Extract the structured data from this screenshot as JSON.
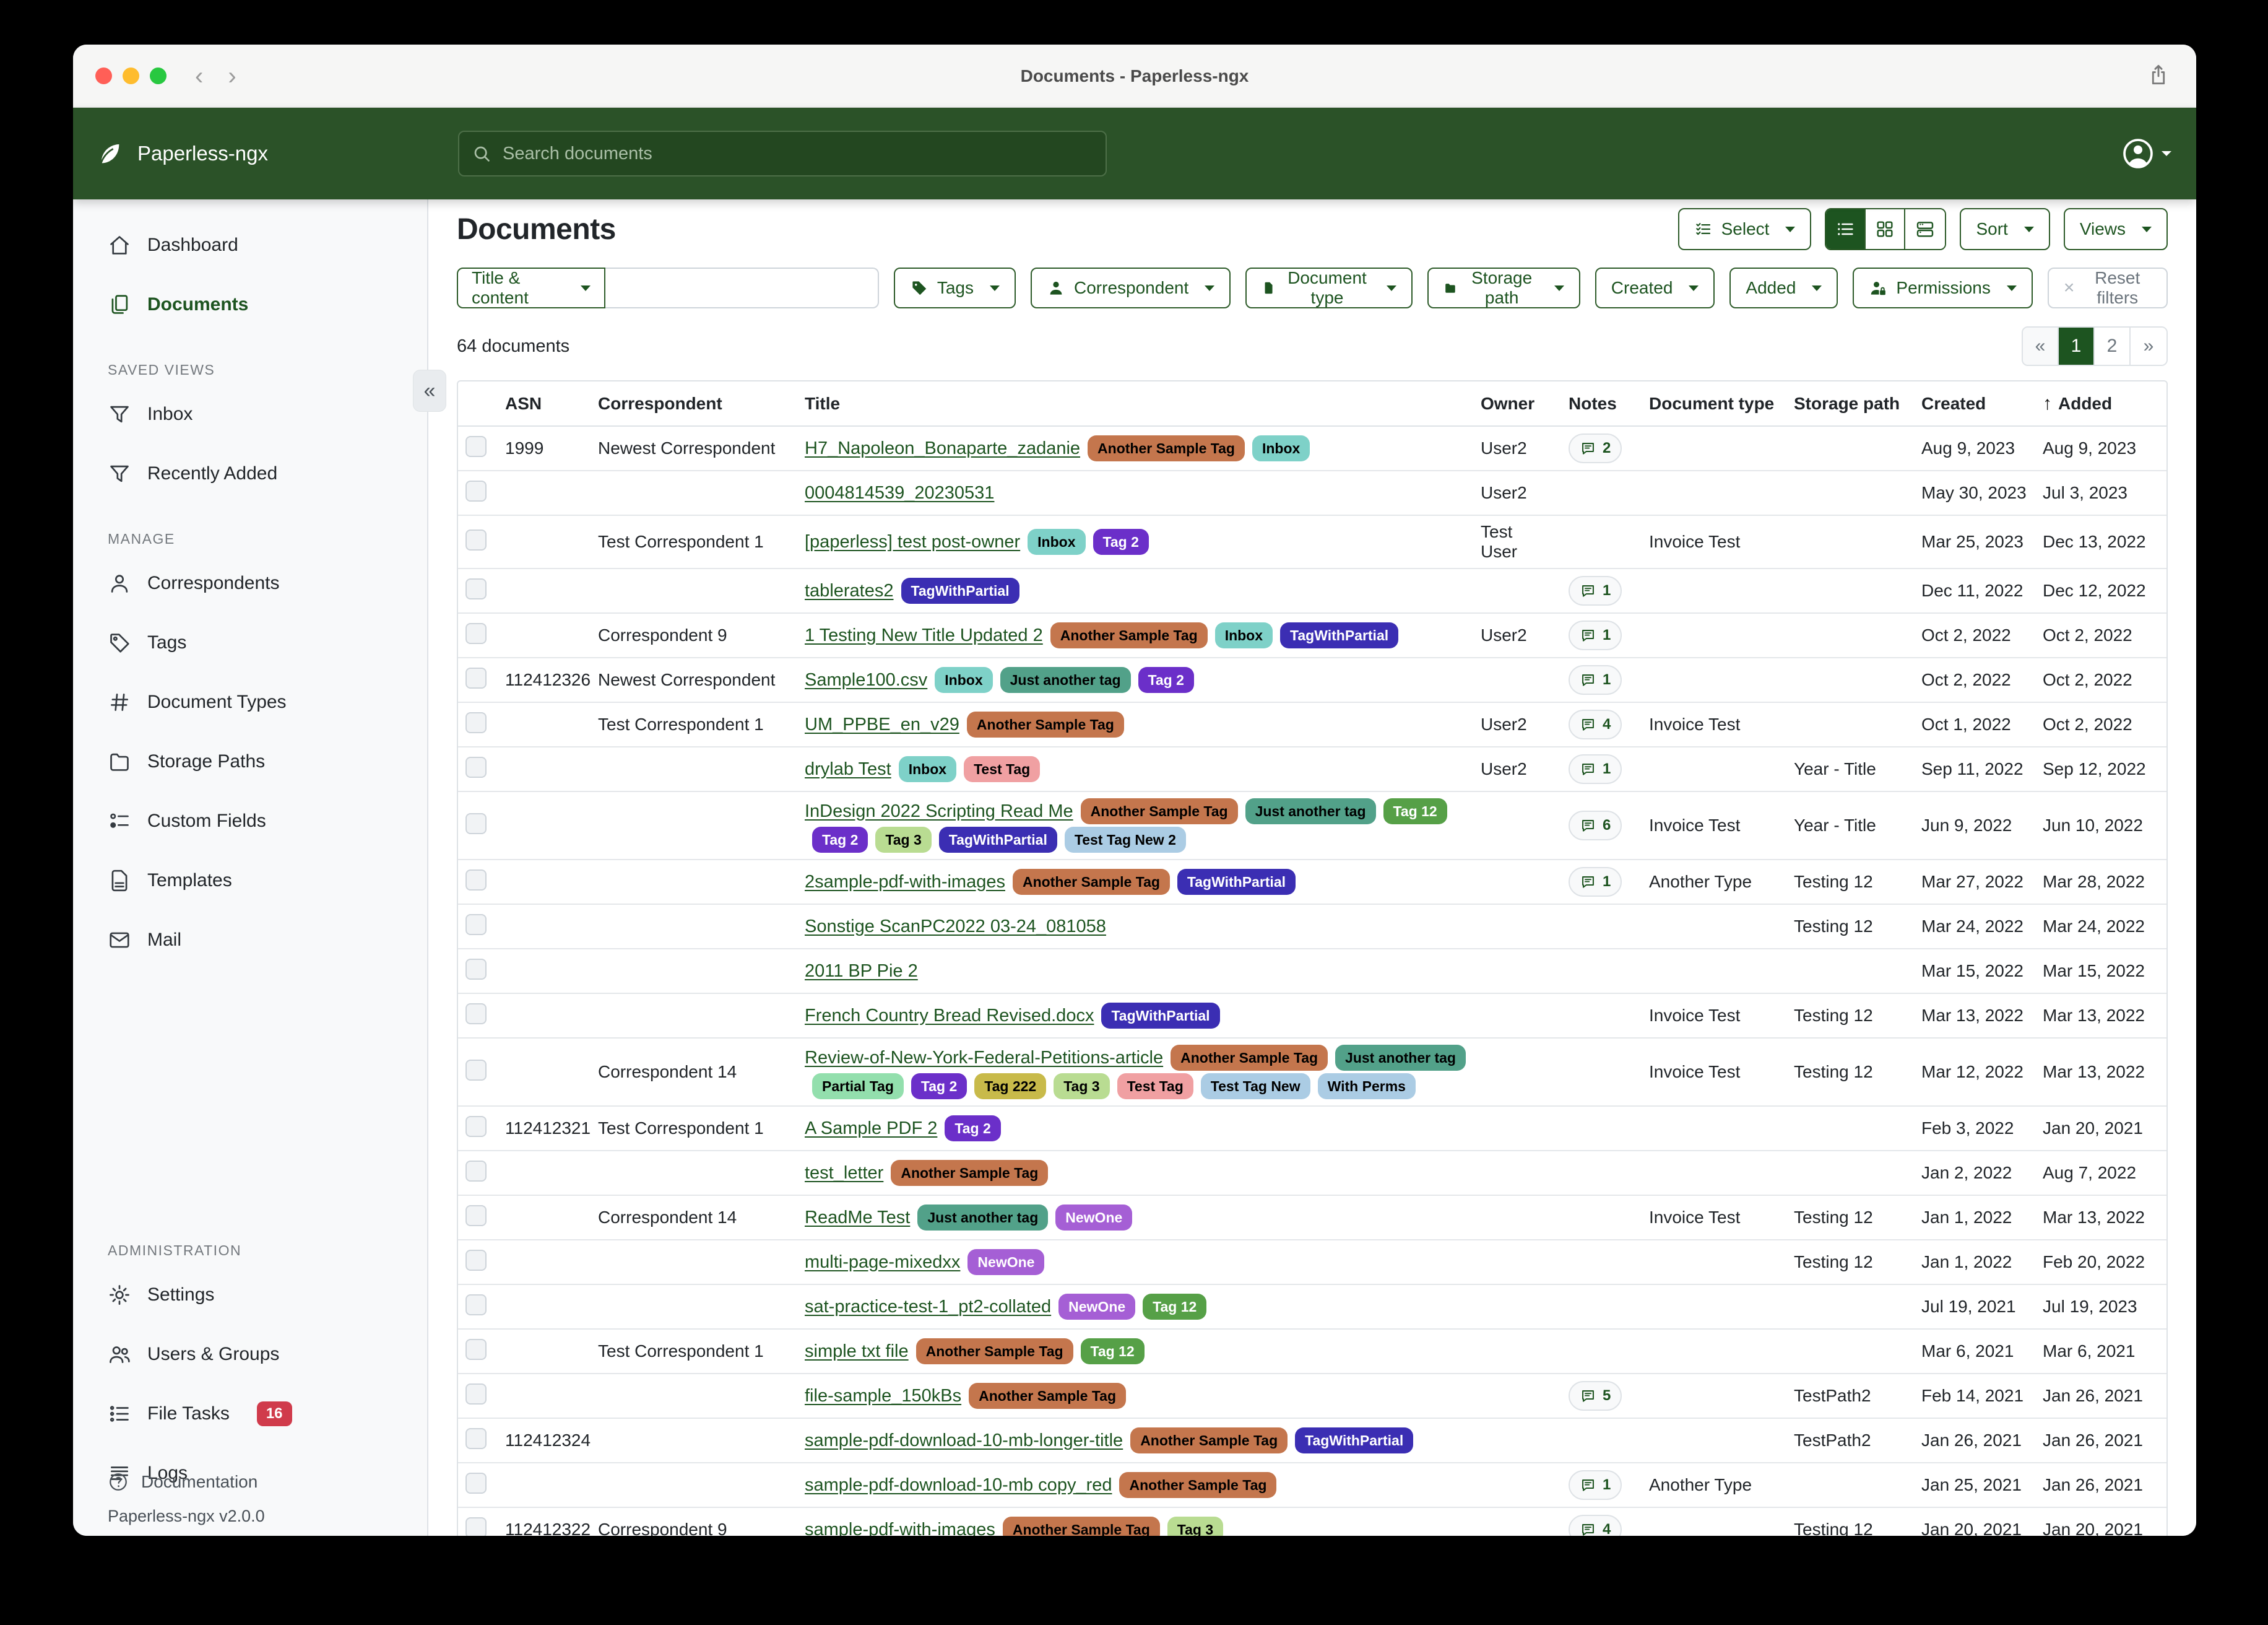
{
  "window": {
    "titlebar": "Documents - Paperless-ngx"
  },
  "appbar": {
    "brand": "Paperless-ngx",
    "search_placeholder": "Search documents"
  },
  "colors": {
    "brand_green": "#2b5228",
    "primary_green": "#1d5420",
    "badge_red": "#d03b4b"
  },
  "sidebar": {
    "nav": [
      {
        "label": "Dashboard"
      },
      {
        "label": "Documents"
      }
    ],
    "saved_views_label": "SAVED VIEWS",
    "saved_views": [
      {
        "label": "Inbox"
      },
      {
        "label": "Recently Added"
      }
    ],
    "manage_label": "MANAGE",
    "manage": [
      {
        "label": "Correspondents"
      },
      {
        "label": "Tags"
      },
      {
        "label": "Document Types"
      },
      {
        "label": "Storage Paths"
      },
      {
        "label": "Custom Fields"
      },
      {
        "label": "Templates"
      },
      {
        "label": "Mail"
      }
    ],
    "admin_label": "ADMINISTRATION",
    "admin": [
      {
        "label": "Settings"
      },
      {
        "label": "Users & Groups"
      },
      {
        "label": "File Tasks",
        "badge": "16"
      },
      {
        "label": "Logs"
      }
    ],
    "documentation": "Documentation",
    "version": "Paperless-ngx v2.0.0"
  },
  "toolbar": {
    "heading": "Documents",
    "select": "Select",
    "sort": "Sort",
    "views": "Views"
  },
  "filters": {
    "title_content": "Title & content",
    "search_value": "",
    "tags": "Tags",
    "correspondent": "Correspondent",
    "document_type": "Document type",
    "storage_path": "Storage path",
    "created": "Created",
    "added": "Added",
    "permissions": "Permissions",
    "reset": "Reset filters"
  },
  "status": {
    "count": "64 documents"
  },
  "pagination": {
    "first": "«",
    "page1": "1",
    "page2": "2",
    "last": "»",
    "active": "1"
  },
  "table": {
    "columns": {
      "asn": "ASN",
      "correspondent": "Correspondent",
      "title": "Title",
      "owner": "Owner",
      "notes": "Notes",
      "document_type": "Document type",
      "storage_path": "Storage path",
      "created": "Created",
      "added": "Added"
    },
    "sorted_by": "added",
    "tag_colors": {
      "Another Sample Tag": {
        "bg": "#c4764d",
        "fg": "#000000"
      },
      "Inbox": {
        "bg": "#7ed1c8",
        "fg": "#000000"
      },
      "Tag 2": {
        "bg": "#6b2fc9",
        "fg": "#ffffff"
      },
      "TagWithPartial": {
        "bg": "#3b2eb3",
        "fg": "#ffffff"
      },
      "Just another tag": {
        "bg": "#52a189",
        "fg": "#000000"
      },
      "Test Tag": {
        "bg": "#f0a0a2",
        "fg": "#000000"
      },
      "Tag 3": {
        "bg": "#b9dc92",
        "fg": "#000000"
      },
      "Tag 12": {
        "bg": "#56a047",
        "fg": "#ffffff"
      },
      "Test Tag New 2": {
        "bg": "#abcce4",
        "fg": "#000000"
      },
      "Test Tag New": {
        "bg": "#abcce4",
        "fg": "#000000"
      },
      "With Perms": {
        "bg": "#abcce4",
        "fg": "#000000"
      },
      "Partial Tag": {
        "bg": "#93dfad",
        "fg": "#000000"
      },
      "Tag 222": {
        "bg": "#c8ba4a",
        "fg": "#000000"
      },
      "NewOne": {
        "bg": "#a55fd5",
        "fg": "#ffffff"
      }
    },
    "rows": [
      {
        "asn": "1999",
        "correspondent": "Newest Correspondent",
        "title": "H7_Napoleon_Bonaparte_zadanie",
        "tags": [
          "Another Sample Tag",
          "Inbox"
        ],
        "owner": "User2",
        "notes": 2,
        "document_type": "",
        "storage_path": "",
        "created": "Aug 9, 2023",
        "added": "Aug 9, 2023"
      },
      {
        "asn": "",
        "correspondent": "",
        "title": "0004814539_20230531",
        "tags": [],
        "owner": "User2",
        "notes": 0,
        "document_type": "",
        "storage_path": "",
        "created": "May 30, 2023",
        "added": "Jul 3, 2023"
      },
      {
        "asn": "",
        "correspondent": "Test Correspondent 1",
        "title": "[paperless] test post-owner",
        "tags": [
          "Inbox",
          "Tag 2"
        ],
        "owner": "Test User",
        "notes": 0,
        "document_type": "Invoice Test",
        "storage_path": "",
        "created": "Mar 25, 2023",
        "added": "Dec 13, 2022"
      },
      {
        "asn": "",
        "correspondent": "",
        "title": "tablerates2",
        "tags": [
          "TagWithPartial"
        ],
        "owner": "",
        "notes": 1,
        "document_type": "",
        "storage_path": "",
        "created": "Dec 11, 2022",
        "added": "Dec 12, 2022"
      },
      {
        "asn": "",
        "correspondent": "Correspondent 9",
        "title": "1 Testing New Title Updated 2",
        "tags": [
          "Another Sample Tag",
          "Inbox",
          "TagWithPartial"
        ],
        "owner": "User2",
        "notes": 1,
        "document_type": "",
        "storage_path": "",
        "created": "Oct 2, 2022",
        "added": "Oct 2, 2022"
      },
      {
        "asn": "112412326",
        "correspondent": "Newest Correspondent",
        "title": "Sample100.csv",
        "tags": [
          "Inbox",
          "Just another tag",
          "Tag 2"
        ],
        "owner": "",
        "notes": 1,
        "document_type": "",
        "storage_path": "",
        "created": "Oct 2, 2022",
        "added": "Oct 2, 2022"
      },
      {
        "asn": "",
        "correspondent": "Test Correspondent 1",
        "title": "UM_PPBE_en_v29",
        "tags": [
          "Another Sample Tag"
        ],
        "owner": "User2",
        "notes": 4,
        "document_type": "Invoice Test",
        "storage_path": "",
        "created": "Oct 1, 2022",
        "added": "Oct 2, 2022"
      },
      {
        "asn": "",
        "correspondent": "",
        "title": "drylab Test",
        "tags": [
          "Inbox",
          "Test Tag"
        ],
        "owner": "User2",
        "notes": 1,
        "document_type": "",
        "storage_path": "Year - Title",
        "created": "Sep 11, 2022",
        "added": "Sep 12, 2022"
      },
      {
        "asn": "",
        "correspondent": "",
        "title": "InDesign 2022 Scripting Read Me",
        "tags": [
          "Another Sample Tag",
          "Just another tag",
          "Tag 12",
          "Tag 2",
          "Tag 3",
          "TagWithPartial",
          "Test Tag New 2"
        ],
        "owner": "",
        "notes": 6,
        "document_type": "Invoice Test",
        "storage_path": "Year - Title",
        "created": "Jun 9, 2022",
        "added": "Jun 10, 2022"
      },
      {
        "asn": "",
        "correspondent": "",
        "title": "2sample-pdf-with-images",
        "tags": [
          "Another Sample Tag",
          "TagWithPartial"
        ],
        "owner": "",
        "notes": 1,
        "document_type": "Another Type",
        "storage_path": "Testing 12",
        "created": "Mar 27, 2022",
        "added": "Mar 28, 2022"
      },
      {
        "asn": "",
        "correspondent": "",
        "title": "Sonstige ScanPC2022 03-24_081058",
        "tags": [],
        "owner": "",
        "notes": 0,
        "document_type": "",
        "storage_path": "Testing 12",
        "created": "Mar 24, 2022",
        "added": "Mar 24, 2022"
      },
      {
        "asn": "",
        "correspondent": "",
        "title": "2011 BP Pie 2",
        "tags": [],
        "owner": "",
        "notes": 0,
        "document_type": "",
        "storage_path": "",
        "created": "Mar 15, 2022",
        "added": "Mar 15, 2022"
      },
      {
        "asn": "",
        "correspondent": "",
        "title": "French Country Bread Revised.docx",
        "tags": [
          "TagWithPartial"
        ],
        "owner": "",
        "notes": 0,
        "document_type": "Invoice Test",
        "storage_path": "Testing 12",
        "created": "Mar 13, 2022",
        "added": "Mar 13, 2022"
      },
      {
        "asn": "",
        "correspondent": "Correspondent 14",
        "title": "Review-of-New-York-Federal-Petitions-article",
        "tags": [
          "Another Sample Tag",
          "Just another tag",
          "Partial Tag",
          "Tag 2",
          "Tag 222",
          "Tag 3",
          "Test Tag",
          "Test Tag New",
          "With Perms"
        ],
        "owner": "",
        "notes": 0,
        "document_type": "Invoice Test",
        "storage_path": "Testing 12",
        "created": "Mar 12, 2022",
        "added": "Mar 13, 2022"
      },
      {
        "asn": "112412321",
        "correspondent": "Test Correspondent 1",
        "title": "A Sample PDF 2",
        "tags": [
          "Tag 2"
        ],
        "owner": "",
        "notes": 0,
        "document_type": "",
        "storage_path": "",
        "created": "Feb 3, 2022",
        "added": "Jan 20, 2021"
      },
      {
        "asn": "",
        "correspondent": "",
        "title": "test_letter",
        "tags": [
          "Another Sample Tag"
        ],
        "owner": "",
        "notes": 0,
        "document_type": "",
        "storage_path": "",
        "created": "Jan 2, 2022",
        "added": "Aug 7, 2022"
      },
      {
        "asn": "",
        "correspondent": "Correspondent 14",
        "title": "ReadMe Test",
        "tags": [
          "Just another tag",
          "NewOne"
        ],
        "owner": "",
        "notes": 0,
        "document_type": "Invoice Test",
        "storage_path": "Testing 12",
        "created": "Jan 1, 2022",
        "added": "Mar 13, 2022"
      },
      {
        "asn": "",
        "correspondent": "",
        "title": "multi-page-mixedxx",
        "tags": [
          "NewOne"
        ],
        "owner": "",
        "notes": 0,
        "document_type": "",
        "storage_path": "Testing 12",
        "created": "Jan 1, 2022",
        "added": "Feb 20, 2022"
      },
      {
        "asn": "",
        "correspondent": "",
        "title": "sat-practice-test-1_pt2-collated",
        "tags": [
          "NewOne",
          "Tag 12"
        ],
        "owner": "",
        "notes": 0,
        "document_type": "",
        "storage_path": "",
        "created": "Jul 19, 2021",
        "added": "Jul 19, 2023"
      },
      {
        "asn": "",
        "correspondent": "Test Correspondent 1",
        "title": "simple txt file",
        "tags": [
          "Another Sample Tag",
          "Tag 12"
        ],
        "owner": "",
        "notes": 0,
        "document_type": "",
        "storage_path": "",
        "created": "Mar 6, 2021",
        "added": "Mar 6, 2021"
      },
      {
        "asn": "",
        "correspondent": "",
        "title": "file-sample_150kBs",
        "tags": [
          "Another Sample Tag"
        ],
        "owner": "",
        "notes": 5,
        "document_type": "",
        "storage_path": "TestPath2",
        "created": "Feb 14, 2021",
        "added": "Jan 26, 2021"
      },
      {
        "asn": "112412324",
        "correspondent": "",
        "title": "sample-pdf-download-10-mb-longer-title",
        "tags": [
          "Another Sample Tag",
          "TagWithPartial"
        ],
        "owner": "",
        "notes": 0,
        "document_type": "",
        "storage_path": "TestPath2",
        "created": "Jan 26, 2021",
        "added": "Jan 26, 2021"
      },
      {
        "asn": "",
        "correspondent": "",
        "title": "sample-pdf-download-10-mb copy_red",
        "tags": [
          "Another Sample Tag"
        ],
        "owner": "",
        "notes": 1,
        "document_type": "Another Type",
        "storage_path": "",
        "created": "Jan 25, 2021",
        "added": "Jan 26, 2021"
      },
      {
        "asn": "112412322",
        "correspondent": "Correspondent 9",
        "title": "sample-pdf-with-images",
        "tags": [
          "Another Sample Tag",
          "Tag 3"
        ],
        "owner": "",
        "notes": 4,
        "document_type": "",
        "storage_path": "Testing 12",
        "created": "Jan 20, 2021",
        "added": "Jan 20, 2021"
      }
    ]
  }
}
